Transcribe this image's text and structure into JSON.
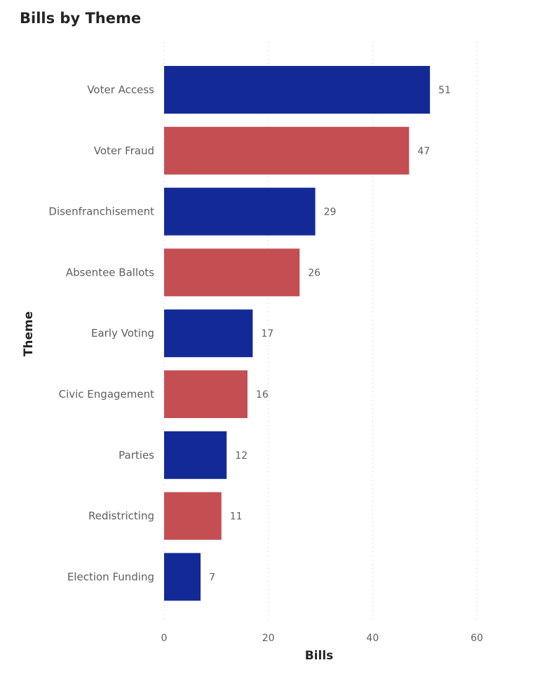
{
  "chart_data": {
    "type": "bar",
    "orientation": "horizontal",
    "title": "Bills by Theme",
    "xlabel": "Bills",
    "ylabel": "Theme",
    "categories": [
      "Voter Access",
      "Voter Fraud",
      "Disenfranchisement",
      "Absentee Ballots",
      "Early Voting",
      "Civic Engagement",
      "Parties",
      "Redistricting",
      "Election Funding"
    ],
    "values": [
      51,
      47,
      29,
      26,
      17,
      16,
      12,
      11,
      7
    ],
    "bar_colors": [
      "#132a96",
      "#c44f53",
      "#132a96",
      "#c44f53",
      "#132a96",
      "#c44f53",
      "#132a96",
      "#c44f53",
      "#132a96"
    ],
    "xlim": [
      0,
      60
    ],
    "xticks": [
      0,
      20,
      40,
      60
    ],
    "grid": true,
    "data_labels": true
  }
}
